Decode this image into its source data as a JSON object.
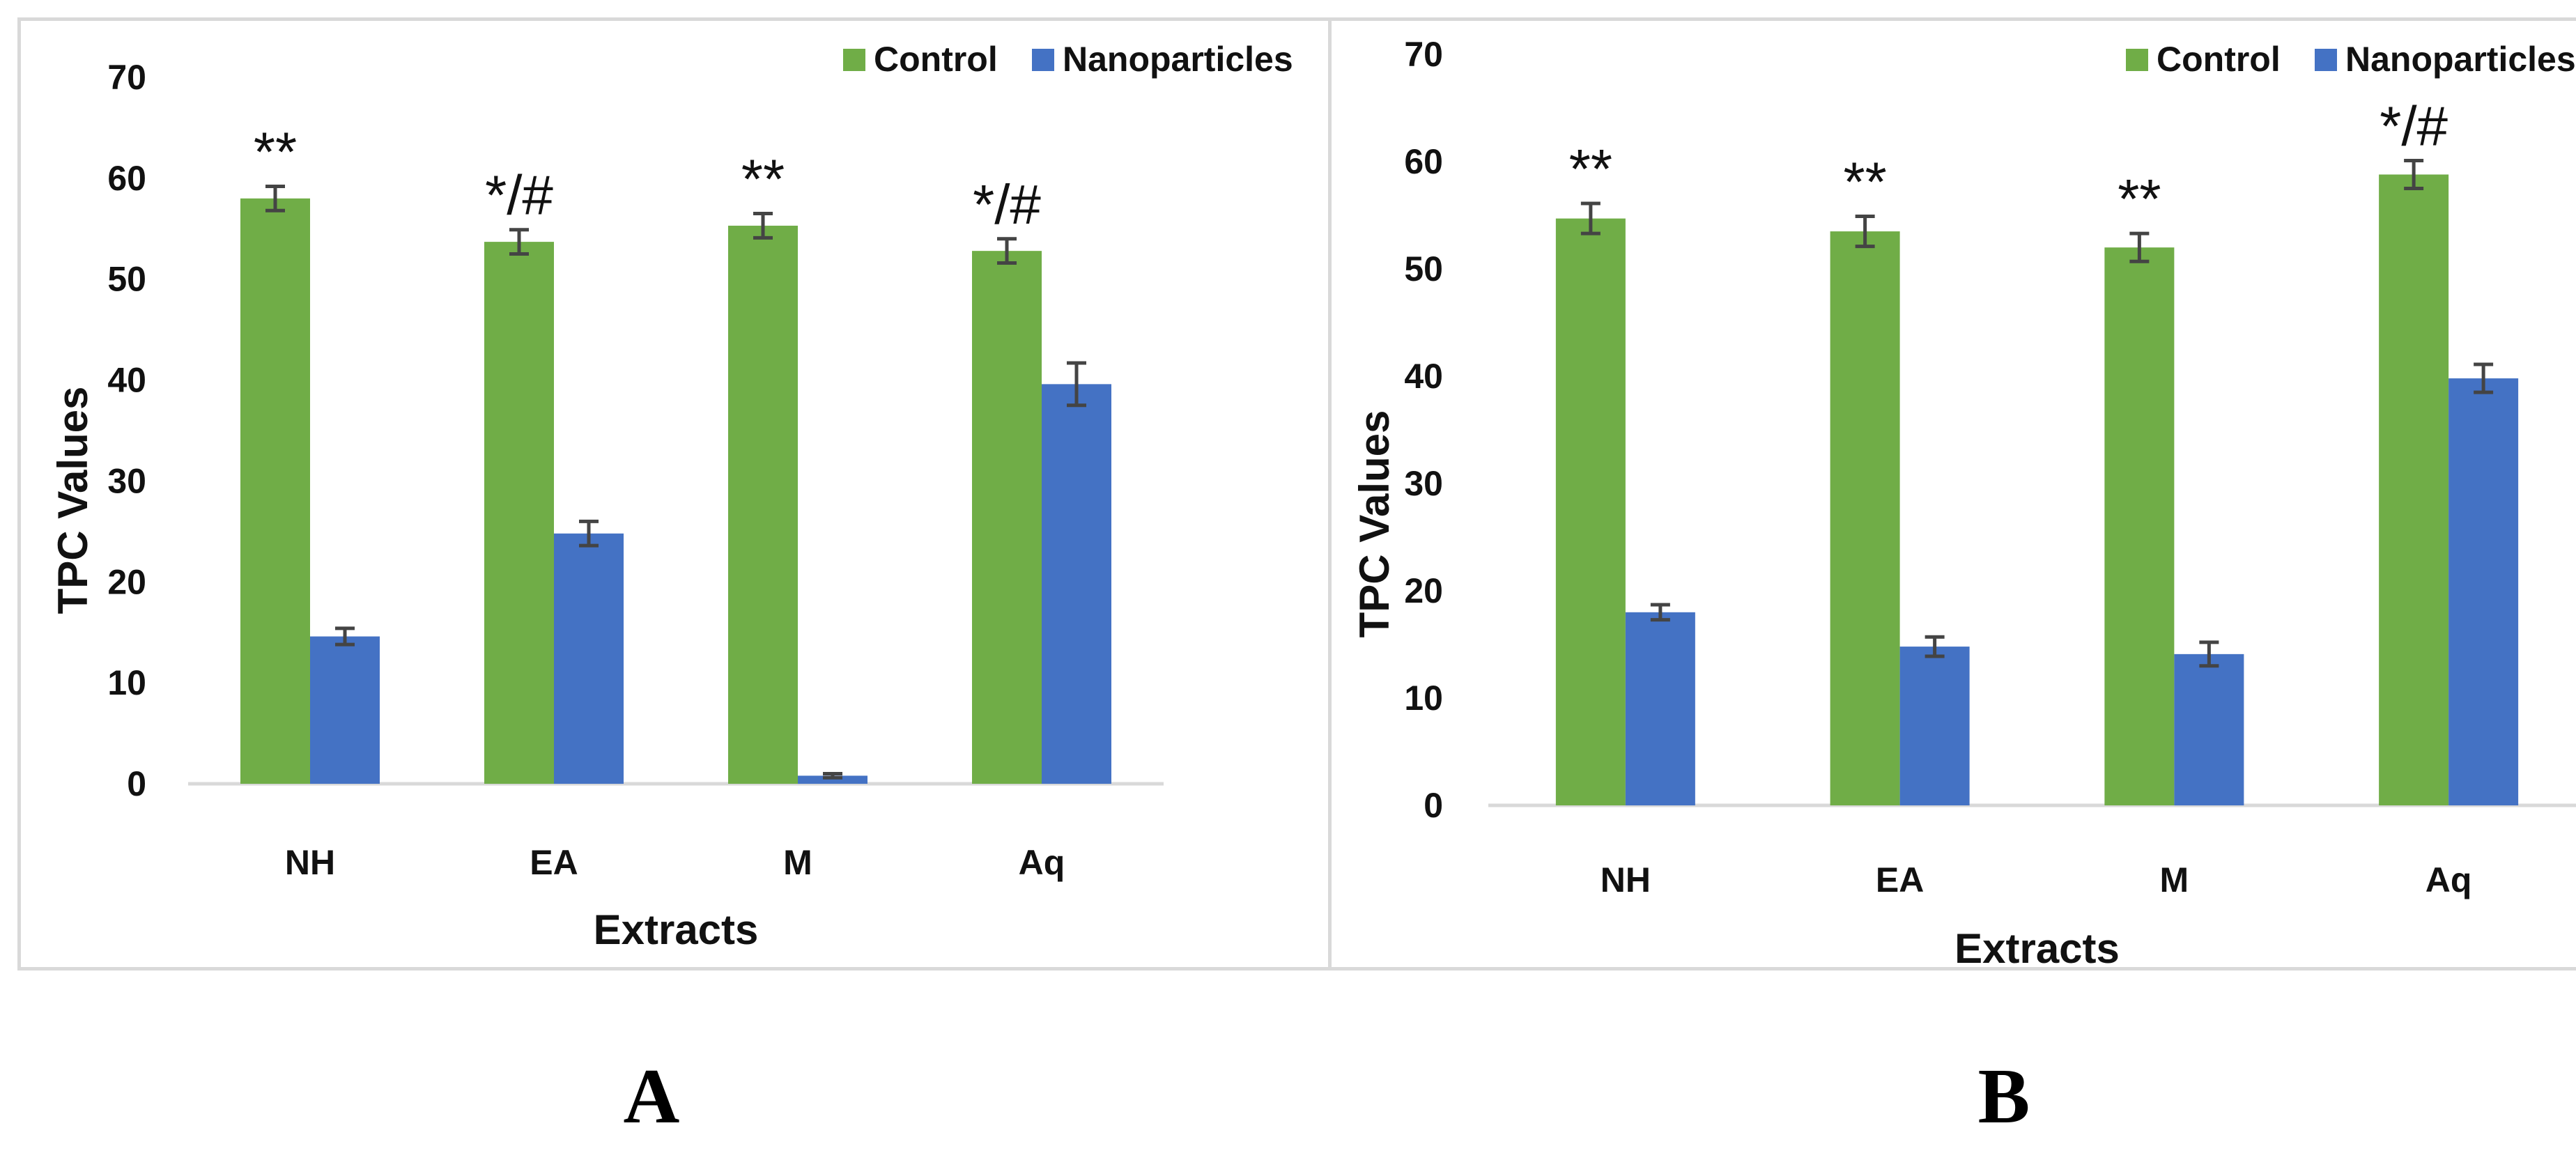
{
  "chart_data": [
    {
      "panel_label": "A",
      "type": "bar",
      "xlabel": "Extracts",
      "ylabel": "TPC Values",
      "ylim": [
        0,
        70
      ],
      "yticks": [
        "0",
        "10",
        "20",
        "30",
        "40",
        "50",
        "60",
        "70"
      ],
      "categories": [
        "NH",
        "EA",
        "M",
        "Aq"
      ],
      "legend_position": "top-right",
      "grid": false,
      "series": [
        {
          "name": "Control",
          "color": "#70ad47",
          "values": [
            58.0,
            53.7,
            55.3,
            52.8
          ],
          "errors": [
            1.2,
            1.2,
            1.2,
            1.2
          ]
        },
        {
          "name": "Nanoparticles",
          "color": "#4472c4",
          "values": [
            14.6,
            24.8,
            0.8,
            39.6
          ],
          "errors": [
            0.8,
            1.2,
            0.2,
            2.1
          ]
        }
      ],
      "annotations": [
        "**",
        "*/#",
        "**",
        "*/#"
      ]
    },
    {
      "panel_label": "B",
      "type": "bar",
      "xlabel": "Extracts",
      "ylabel": "TPC Values",
      "ylim": [
        0,
        70
      ],
      "yticks": [
        "0",
        "10",
        "20",
        "30",
        "40",
        "50",
        "60",
        "70"
      ],
      "categories": [
        "NH",
        "EA",
        "M",
        "Aq"
      ],
      "legend_position": "top-right",
      "grid": false,
      "series": [
        {
          "name": "Control",
          "color": "#70ad47",
          "values": [
            54.7,
            53.5,
            52.0,
            58.8
          ],
          "errors": [
            1.4,
            1.4,
            1.3,
            1.3
          ]
        },
        {
          "name": "Nanoparticles",
          "color": "#4472c4",
          "values": [
            18.0,
            14.8,
            14.1,
            39.8
          ],
          "errors": [
            0.7,
            0.9,
            1.1,
            1.3
          ]
        }
      ],
      "annotations": [
        "**",
        "**",
        "**",
        "*/#"
      ]
    }
  ]
}
